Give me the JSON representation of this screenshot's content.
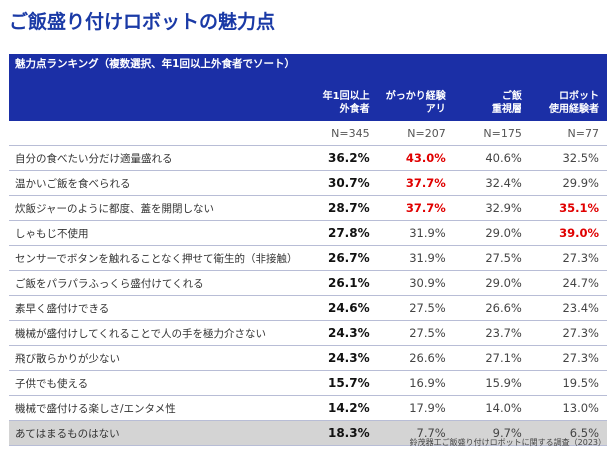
{
  "page_title": "ご飯盛り付けロボットの魅力点",
  "chart_data": {
    "type": "table",
    "title": "魅力点ランキング（複数選択、年1回以上外食者でソート）",
    "columns": [
      {
        "line1": "年1回以上",
        "line2": "外食者",
        "n": "N=345"
      },
      {
        "line1": "がっかり経験",
        "line2": "アリ",
        "n": "N=207"
      },
      {
        "line1": "ご飯",
        "line2": "重視層",
        "n": "N=175"
      },
      {
        "line1": "ロボット",
        "line2": "使用経験者",
        "n": "N=77"
      }
    ],
    "rows": [
      {
        "label": "自分の食べたい分だけ適量盛れる",
        "values": [
          "36.2%",
          "43.0%",
          "40.6%",
          "32.5%"
        ],
        "highlight": [
          false,
          true,
          false,
          false
        ]
      },
      {
        "label": "温かいご飯を食べられる",
        "values": [
          "30.7%",
          "37.7%",
          "32.4%",
          "29.9%"
        ],
        "highlight": [
          false,
          true,
          false,
          false
        ]
      },
      {
        "label": "炊飯ジャーのように都度、蓋を開閉しない",
        "values": [
          "28.7%",
          "37.7%",
          "32.9%",
          "35.1%"
        ],
        "highlight": [
          false,
          true,
          false,
          true
        ]
      },
      {
        "label": "しゃもじ不使用",
        "values": [
          "27.8%",
          "31.9%",
          "29.0%",
          "39.0%"
        ],
        "highlight": [
          false,
          false,
          false,
          true
        ]
      },
      {
        "label": "センサーでボタンを触れることなく押せて衛生的（非接触）",
        "values": [
          "26.7%",
          "31.9%",
          "27.5%",
          "27.3%"
        ],
        "highlight": [
          false,
          false,
          false,
          false
        ]
      },
      {
        "label": "ご飯をパラパラふっくら盛付けてくれる",
        "values": [
          "26.1%",
          "30.9%",
          "29.0%",
          "24.7%"
        ],
        "highlight": [
          false,
          false,
          false,
          false
        ]
      },
      {
        "label": "素早く盛付けできる",
        "values": [
          "24.6%",
          "27.5%",
          "26.6%",
          "23.4%"
        ],
        "highlight": [
          false,
          false,
          false,
          false
        ]
      },
      {
        "label": "機械が盛付けしてくれることで人の手を極力介さない",
        "values": [
          "24.3%",
          "27.5%",
          "23.7%",
          "27.3%"
        ],
        "highlight": [
          false,
          false,
          false,
          false
        ]
      },
      {
        "label": "飛び散らかりが少ない",
        "values": [
          "24.3%",
          "26.6%",
          "27.1%",
          "27.3%"
        ],
        "highlight": [
          false,
          false,
          false,
          false
        ]
      },
      {
        "label": "子供でも使える",
        "values": [
          "15.7%",
          "16.9%",
          "15.9%",
          "19.5%"
        ],
        "highlight": [
          false,
          false,
          false,
          false
        ]
      },
      {
        "label": "機械で盛付ける楽しさ/エンタメ性",
        "values": [
          "14.2%",
          "17.9%",
          "14.0%",
          "13.0%"
        ],
        "highlight": [
          false,
          false,
          false,
          false
        ]
      },
      {
        "label": "あてはまるものはない",
        "values": [
          "18.3%",
          "7.7%",
          "9.7%",
          "6.5%"
        ],
        "highlight": [
          false,
          false,
          false,
          false
        ]
      }
    ],
    "highlight_color": "#e00000",
    "header_color": "#1b2fa6"
  },
  "source": "鈴茂器工ご飯盛り付けロボットに関する調査（2023）"
}
